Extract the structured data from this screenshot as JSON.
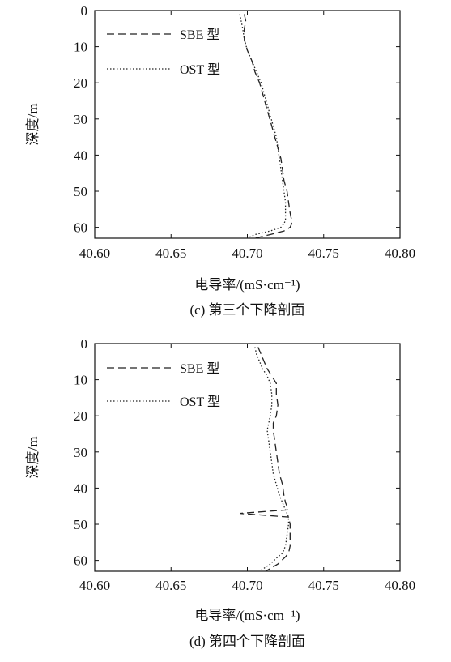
{
  "chart_data": [
    {
      "type": "line",
      "caption": "(c) 第三个下降剖面",
      "xlabel": "电导率/(mS·cm⁻¹)",
      "ylabel": "深度/m",
      "xlim": [
        40.6,
        40.8
      ],
      "ylim": [
        0,
        63
      ],
      "y_inverted": true,
      "xticks": [
        "40.60",
        "40.65",
        "40.70",
        "40.75",
        "40.80"
      ],
      "yticks": [
        "0",
        "10",
        "20",
        "30",
        "40",
        "50",
        "60"
      ],
      "legend_position": "top-left",
      "series": [
        {
          "name": "SBE 型",
          "style": "dashed",
          "x": [
            40.698,
            40.699,
            40.698,
            40.698,
            40.7,
            40.703,
            40.705,
            40.708,
            40.71,
            40.712,
            40.714,
            40.716,
            40.718,
            40.72,
            40.722,
            40.723,
            40.724,
            40.726,
            40.727,
            40.728,
            40.729,
            40.729,
            40.728,
            40.724,
            40.715,
            40.705
          ],
          "y": [
            1,
            3,
            5,
            8,
            11,
            14,
            17,
            20,
            23,
            26,
            29,
            32,
            35,
            38,
            41,
            44,
            47,
            50,
            53,
            56,
            58,
            59,
            60,
            61,
            62,
            63
          ]
        },
        {
          "name": "OST 型",
          "style": "dotted",
          "x": [
            40.695,
            40.696,
            40.697,
            40.698,
            40.7,
            40.703,
            40.706,
            40.709,
            40.711,
            40.713,
            40.715,
            40.717,
            40.719,
            40.72,
            40.721,
            40.722,
            40.723,
            40.724,
            40.725,
            40.725,
            40.725,
            40.724,
            40.722,
            40.715,
            40.705,
            40.7
          ],
          "y": [
            1,
            3,
            5,
            8,
            11,
            14,
            17,
            20,
            23,
            26,
            29,
            32,
            35,
            38,
            41,
            44,
            47,
            50,
            53,
            56,
            58,
            59,
            60,
            61,
            62,
            63
          ]
        }
      ]
    },
    {
      "type": "line",
      "caption": "(d) 第四个下降剖面",
      "xlabel": "电导率/(mS·cm⁻¹)",
      "ylabel": "深度/m",
      "xlim": [
        40.6,
        40.8
      ],
      "ylim": [
        0,
        63
      ],
      "y_inverted": true,
      "xticks": [
        "40.60",
        "40.65",
        "40.70",
        "40.75",
        "40.80"
      ],
      "yticks": [
        "0",
        "10",
        "20",
        "30",
        "40",
        "50",
        "60"
      ],
      "legend_position": "top-left",
      "series": [
        {
          "name": "SBE 型",
          "style": "dashed",
          "x": [
            40.707,
            40.709,
            40.711,
            40.713,
            40.716,
            40.719,
            40.719,
            40.72,
            40.719,
            40.717,
            40.717,
            40.718,
            40.719,
            40.72,
            40.721,
            40.723,
            40.724,
            40.725,
            40.726,
            40.727,
            40.695,
            40.727,
            40.728,
            40.728,
            40.728,
            40.727,
            40.725,
            40.72,
            40.712
          ],
          "y": [
            1,
            3,
            5,
            7,
            9,
            11,
            14,
            17,
            20,
            22,
            24,
            27,
            30,
            33,
            36,
            39,
            42,
            44,
            45,
            46,
            47,
            48,
            50,
            53,
            56,
            58,
            59,
            61,
            63
          ]
        },
        {
          "name": "OST 型",
          "style": "dotted",
          "x": [
            40.705,
            40.706,
            40.708,
            40.71,
            40.713,
            40.715,
            40.716,
            40.716,
            40.715,
            40.714,
            40.713,
            40.714,
            40.715,
            40.716,
            40.717,
            40.719,
            40.721,
            40.723,
            40.724,
            40.725,
            40.726,
            40.727,
            40.727,
            40.726,
            40.725,
            40.723,
            40.72,
            40.715,
            40.708
          ],
          "y": [
            1,
            3,
            5,
            7,
            9,
            11,
            14,
            17,
            20,
            22,
            24,
            27,
            30,
            33,
            36,
            39,
            42,
            44,
            45,
            46,
            47,
            48,
            50,
            53,
            56,
            58,
            59,
            61,
            63
          ]
        }
      ]
    }
  ]
}
